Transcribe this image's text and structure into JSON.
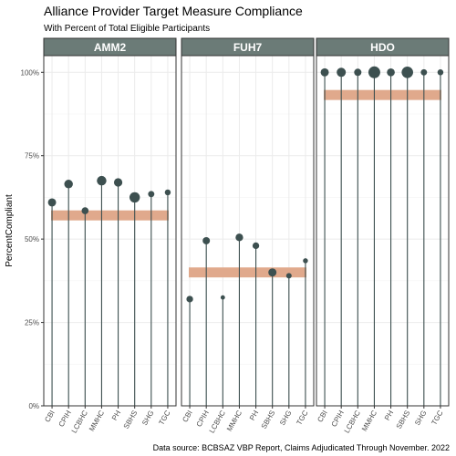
{
  "chart_data": {
    "type": "lollipop",
    "title": "Alliance Provider Target Measure Compliance",
    "subtitle": "With Percent of Total Eligible Participants",
    "caption": "Data source: BCBSAZ VBP Report, Claims Adjudicated Through November. 2022",
    "ylabel": "PercentCompliant",
    "xlabel": "",
    "ylim": [
      0,
      1.05
    ],
    "yticks": [
      0,
      0.25,
      0.5,
      0.75,
      1.0
    ],
    "ytick_labels": [
      "0%",
      "25%",
      "50%",
      "75%",
      "100%"
    ],
    "grid": true,
    "categories": [
      "CBI",
      "CPIH",
      "LCBHC",
      "MMHC",
      "PH",
      "SBHS",
      "SHG",
      "TGC"
    ],
    "panels": [
      {
        "name": "AMM2",
        "target": 0.571,
        "values": [
          0.61,
          0.665,
          0.585,
          0.675,
          0.67,
          0.625,
          0.635,
          0.64
        ],
        "share": [
          0.12,
          0.14,
          0.08,
          0.18,
          0.13,
          0.22,
          0.06,
          0.05
        ]
      },
      {
        "name": "FUH7",
        "target": 0.4,
        "values": [
          0.32,
          0.495,
          0.325,
          0.505,
          0.48,
          0.4,
          0.39,
          0.435
        ],
        "share": [
          0.07,
          0.09,
          0.02,
          0.1,
          0.07,
          0.12,
          0.04,
          0.03
        ]
      },
      {
        "name": "HDO",
        "target": 0.932,
        "values": [
          1.0,
          1.0,
          1.0,
          1.0,
          1.0,
          1.0,
          1.0,
          1.0
        ],
        "share": [
          0.12,
          0.16,
          0.09,
          0.3,
          0.11,
          0.28,
          0.06,
          0.05
        ]
      }
    ],
    "colors": {
      "point": "#3d5050",
      "stem": "#3d5050",
      "target_band": "#e0a98c",
      "strip_fill": "#6b7b77",
      "grid": "#ebebeb"
    }
  }
}
